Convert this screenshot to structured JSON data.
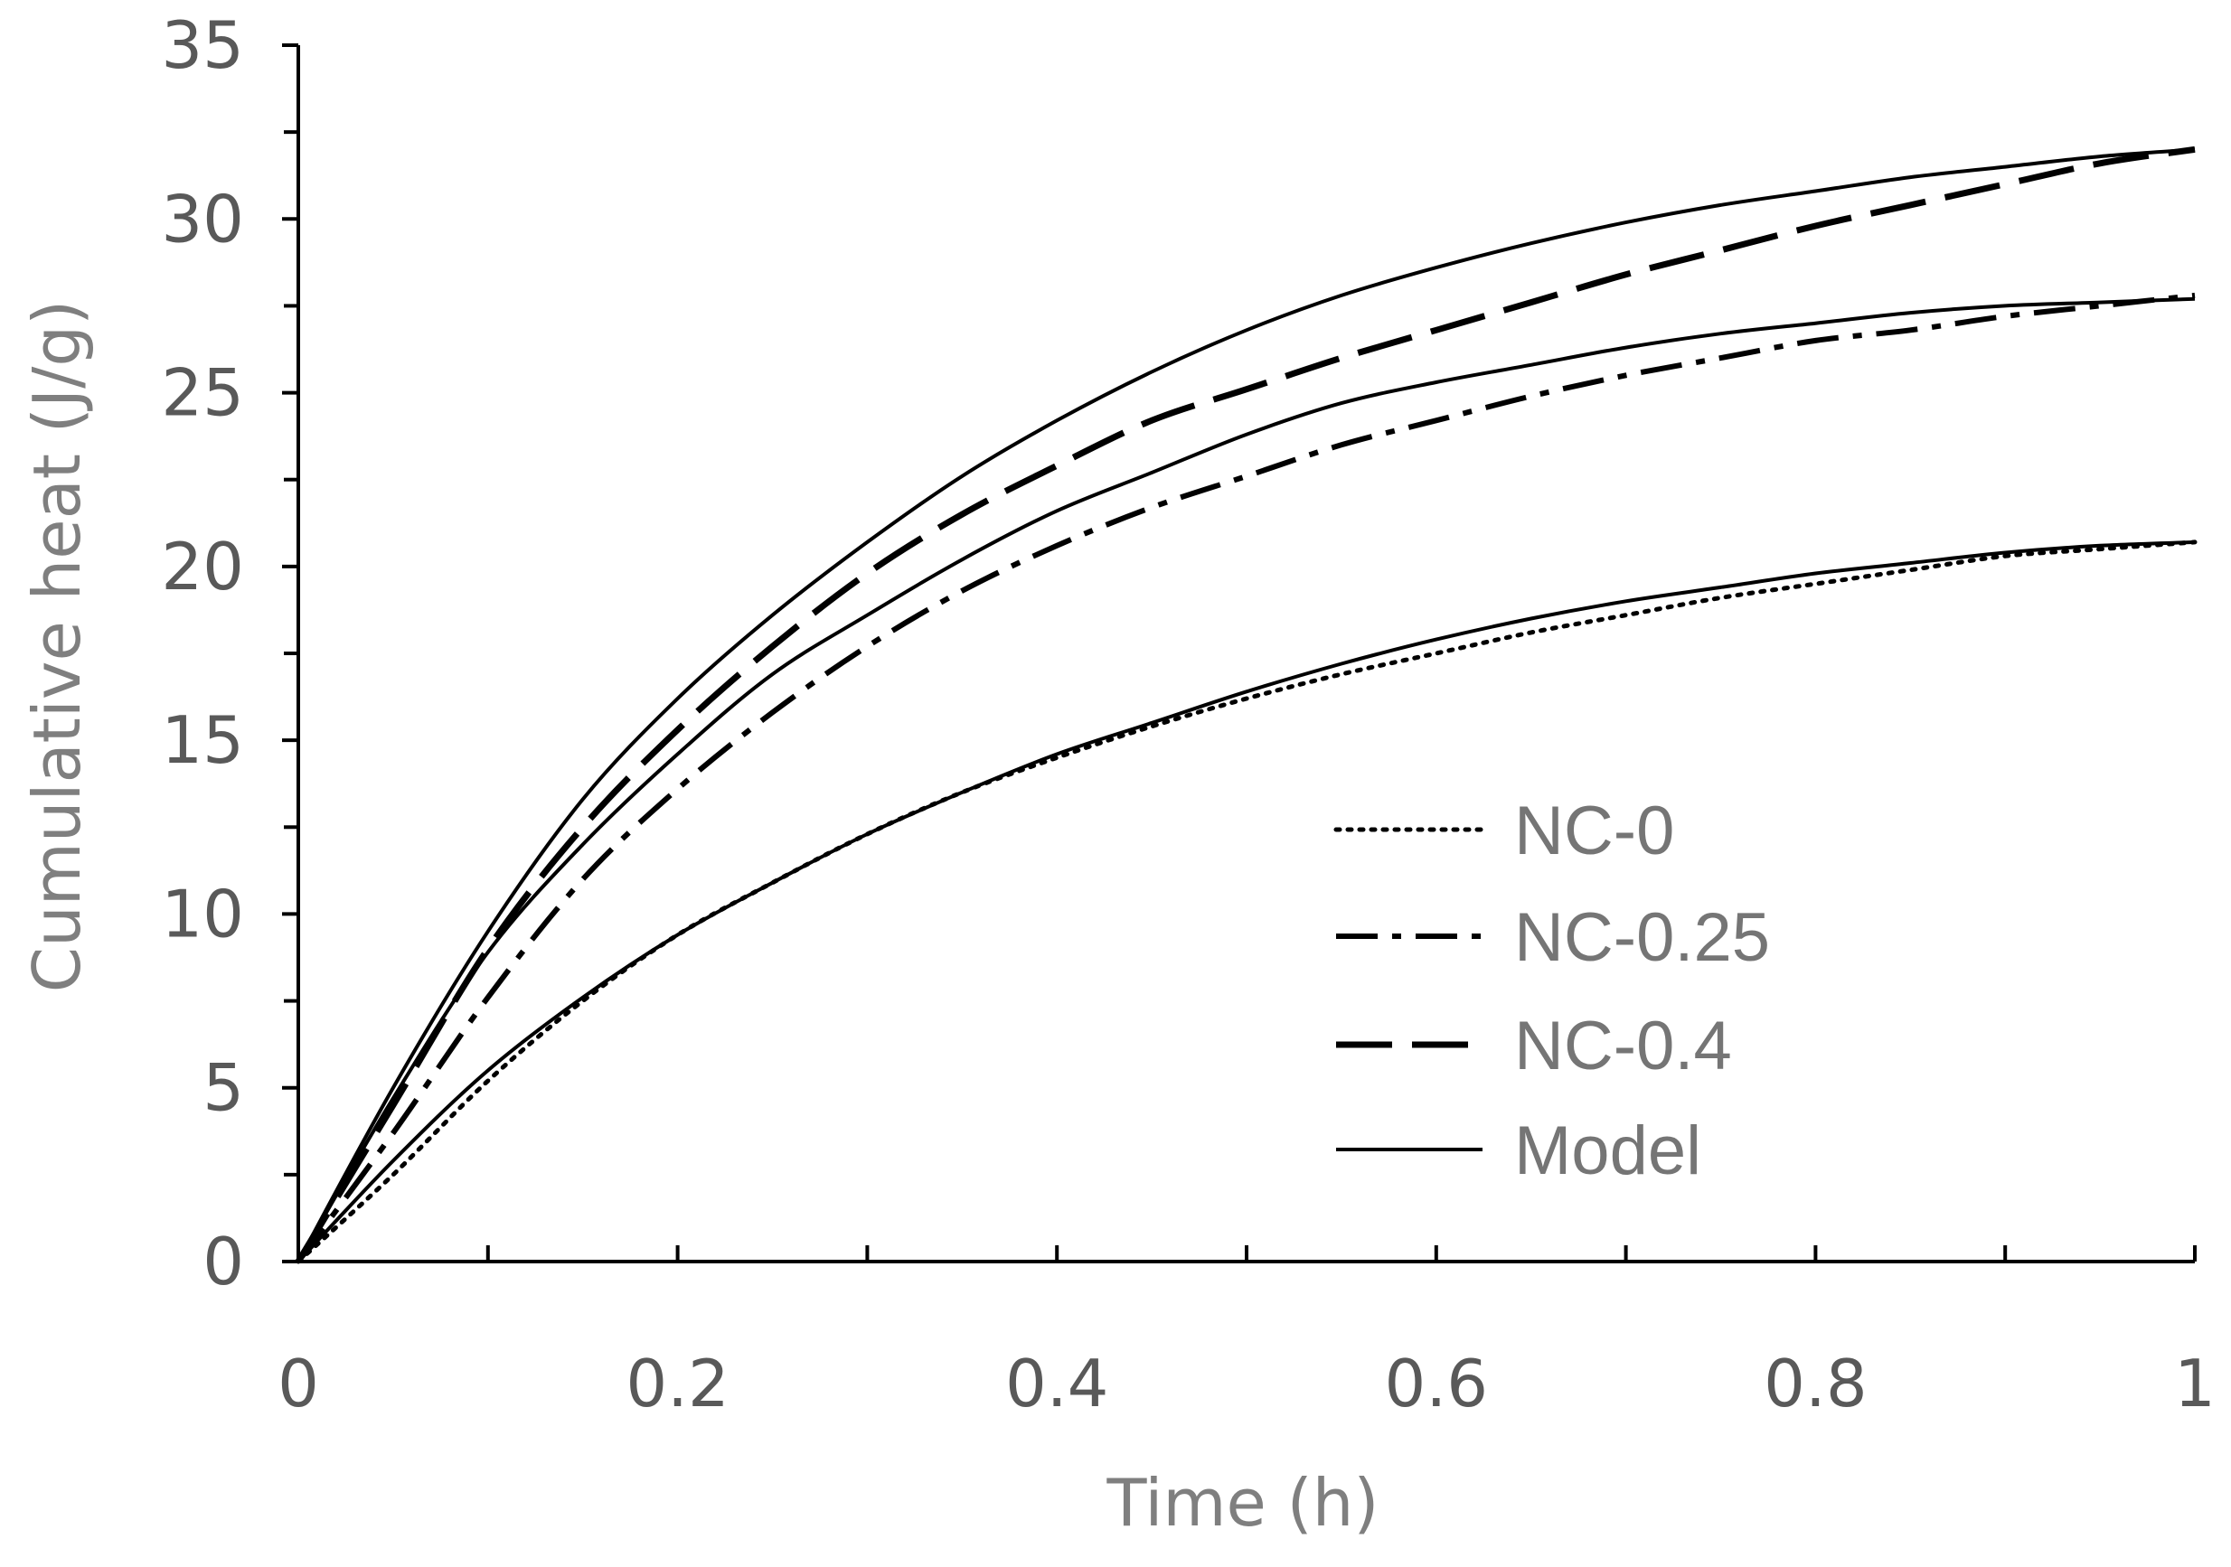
{
  "chart_data": {
    "type": "line",
    "title": "",
    "xlabel": "Time (h)",
    "ylabel": "Cumulative heat (J/g)",
    "xlim": [
      0,
      1
    ],
    "ylim": [
      0,
      35
    ],
    "x_ticks": [
      "0",
      "0.2",
      "0.4",
      "0.6",
      "0.8",
      "1"
    ],
    "y_ticks": [
      "0",
      "5",
      "10",
      "15",
      "20",
      "25",
      "30",
      "35"
    ],
    "grid": false,
    "legend_position": "bottom-right",
    "x": [
      0,
      0.05,
      0.1,
      0.15,
      0.2,
      0.25,
      0.3,
      0.35,
      0.4,
      0.45,
      0.5,
      0.55,
      0.6,
      0.65,
      0.7,
      0.75,
      0.8,
      0.85,
      0.9,
      0.95,
      1
    ],
    "series": [
      {
        "name": "NC-0",
        "style": "dotted",
        "values": [
          0,
          2.5,
          5.2,
          7.5,
          9.4,
          10.9,
          12.3,
          13.5,
          14.5,
          15.4,
          16.2,
          16.9,
          17.5,
          18.1,
          18.6,
          19.1,
          19.5,
          19.9,
          20.3,
          20.5,
          20.7
        ]
      },
      {
        "name": "NC-0.25",
        "style": "dash-dot",
        "values": [
          0,
          3.7,
          7.6,
          11.0,
          13.6,
          15.8,
          17.7,
          19.3,
          20.6,
          21.7,
          22.6,
          23.5,
          24.2,
          24.9,
          25.5,
          26.0,
          26.5,
          26.8,
          27.2,
          27.5,
          27.8
        ]
      },
      {
        "name": "NC-0.4",
        "style": "long-dash",
        "values": [
          0,
          4.5,
          9.0,
          12.5,
          15.3,
          17.7,
          19.8,
          21.5,
          22.9,
          24.2,
          25.1,
          26.0,
          26.8,
          27.6,
          28.4,
          29.1,
          29.8,
          30.4,
          31.0,
          31.6,
          32.0
        ]
      },
      {
        "name": "Model",
        "style": "solid",
        "values": [
          0,
          2.9,
          5.5,
          7.6,
          9.4,
          10.9,
          12.3,
          13.5,
          14.6,
          15.5,
          16.4,
          17.2,
          17.9,
          18.5,
          19.0,
          19.4,
          19.8,
          20.1,
          20.4,
          20.6,
          20.7
        ]
      },
      {
        "name": "Model",
        "style": "solid",
        "values": [
          0,
          4.7,
          8.9,
          12.0,
          14.6,
          16.9,
          18.6,
          20.2,
          21.6,
          22.7,
          23.8,
          24.7,
          25.3,
          25.8,
          26.3,
          26.7,
          27.0,
          27.3,
          27.5,
          27.6,
          27.7
        ]
      },
      {
        "name": "Model",
        "style": "solid",
        "values": [
          0,
          5.0,
          9.5,
          13.3,
          16.2,
          18.6,
          20.7,
          22.6,
          24.2,
          25.6,
          26.8,
          27.8,
          28.6,
          29.3,
          29.9,
          30.4,
          30.8,
          31.2,
          31.5,
          31.8,
          32.0
        ]
      }
    ],
    "legend": [
      {
        "label": "NC-0",
        "style": "dotted"
      },
      {
        "label": "NC-0.25",
        "style": "dash-dot"
      },
      {
        "label": "NC-0.4",
        "style": "long-dash"
      },
      {
        "label": "Model",
        "style": "solid"
      }
    ]
  }
}
